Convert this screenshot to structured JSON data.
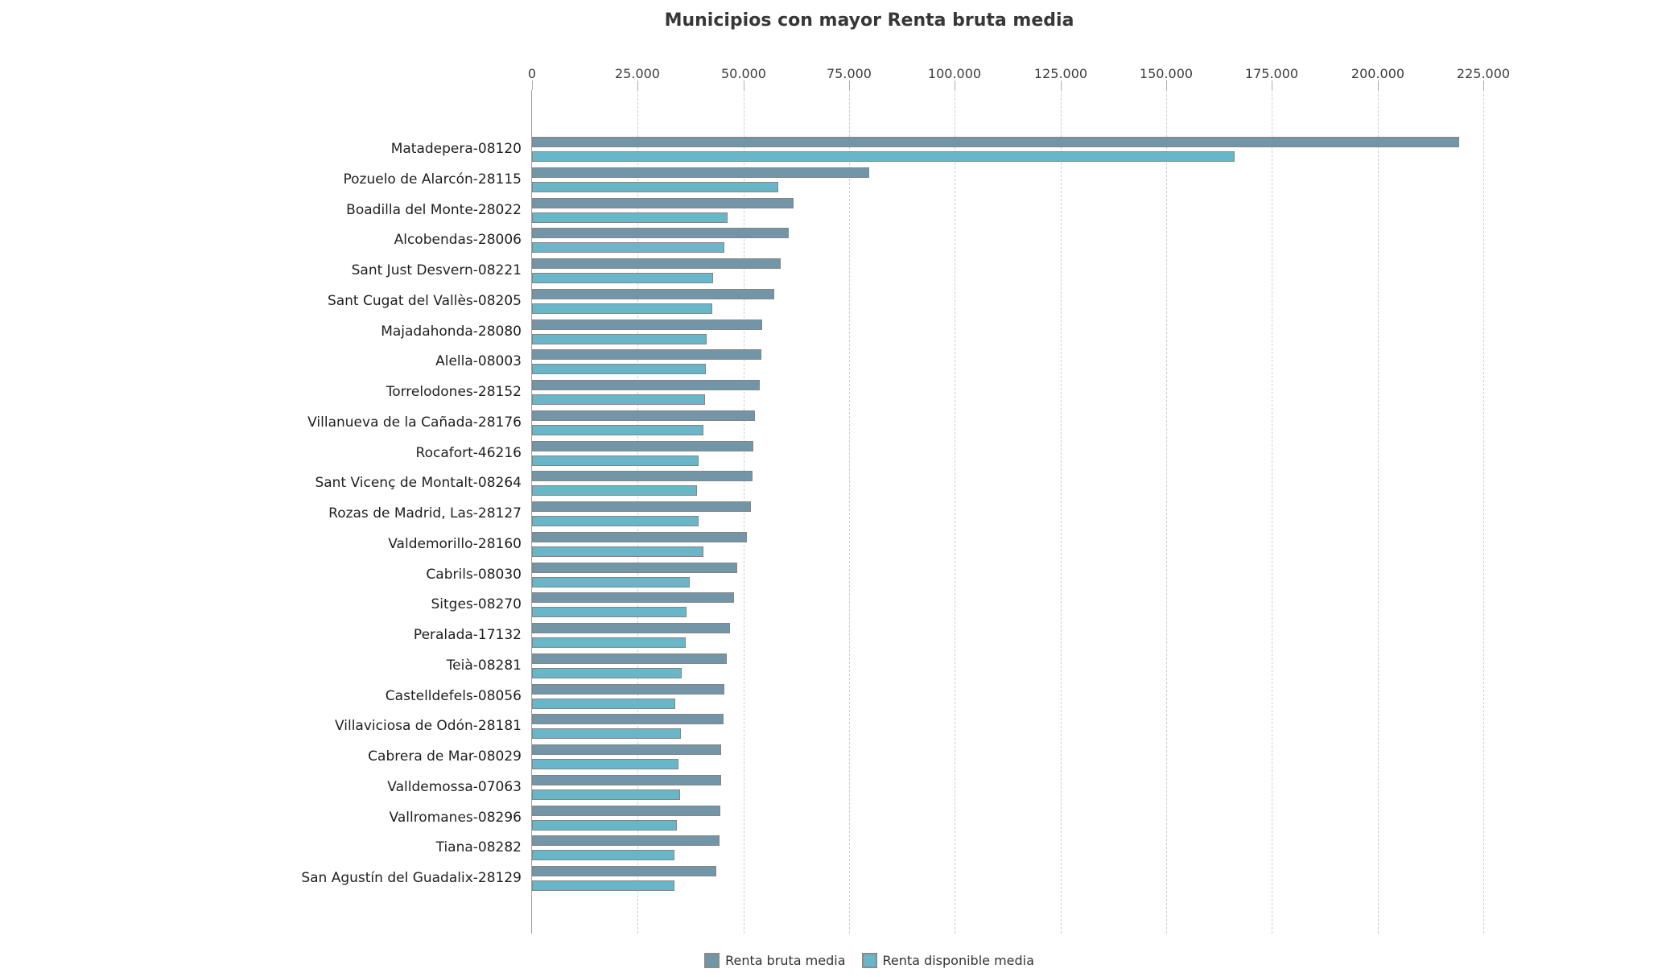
{
  "chart_data": {
    "type": "bar",
    "orientation": "horizontal",
    "title": "Municipios con mayor Renta bruta media",
    "categories": [
      "Matadepera-08120",
      "Pozuelo de Alarcón-28115",
      "Boadilla del Monte-28022",
      "Alcobendas-28006",
      "Sant Just Desvern-08221",
      "Sant Cugat del Vallès-08205",
      "Majadahonda-28080",
      "Alella-08003",
      "Torrelodones-28152",
      "Villanueva de la Cañada-28176",
      "Rocafort-46216",
      "Sant Vicenç de Montalt-08264",
      "Rozas de Madrid, Las-28127",
      "Valdemorillo-28160",
      "Cabrils-08030",
      "Sitges-08270",
      "Peralada-17132",
      "Teià-08281",
      "Castelldefels-08056",
      "Villaviciosa de Odón-28181",
      "Cabrera de Mar-08029",
      "Valldemossa-07063",
      "Vallromanes-08296",
      "Tiana-08282",
      "San Agustín del Guadalix-28129"
    ],
    "series": [
      {
        "name": "Renta bruta media",
        "color": "#7296a7",
        "border_color": "#848484",
        "values": [
          219300,
          79800,
          61900,
          60700,
          58800,
          57300,
          54500,
          54300,
          53900,
          52700,
          52400,
          52100,
          51800,
          50800,
          48500,
          47800,
          46900,
          46100,
          45400,
          45300,
          44800,
          44700,
          44600,
          44300,
          43600
        ]
      },
      {
        "name": "Renta disponible media",
        "color": "#68b6c8",
        "border_color": "#848484",
        "values": [
          166200,
          58300,
          46300,
          45500,
          42900,
          42700,
          41400,
          41200,
          40900,
          40600,
          39400,
          39100,
          39400,
          40500,
          37300,
          36500,
          36400,
          35400,
          33800,
          35200,
          34700,
          35100,
          34300,
          33700,
          33600
        ]
      }
    ],
    "x_axis": {
      "min": 0,
      "max": 225000,
      "tick_interval": 25000,
      "ticks": [
        0,
        25000,
        50000,
        75000,
        100000,
        125000,
        150000,
        175000,
        200000,
        225000
      ],
      "tick_labels": [
        "0",
        "25.000",
        "50.000",
        "75.000",
        "100.000",
        "125.000",
        "150.000",
        "175.000",
        "200.000",
        "225.000"
      ],
      "grid_style": "dashed",
      "position": "top"
    },
    "legend": {
      "position": "bottom",
      "items": [
        "Renta bruta media",
        "Renta disponible media"
      ]
    }
  }
}
